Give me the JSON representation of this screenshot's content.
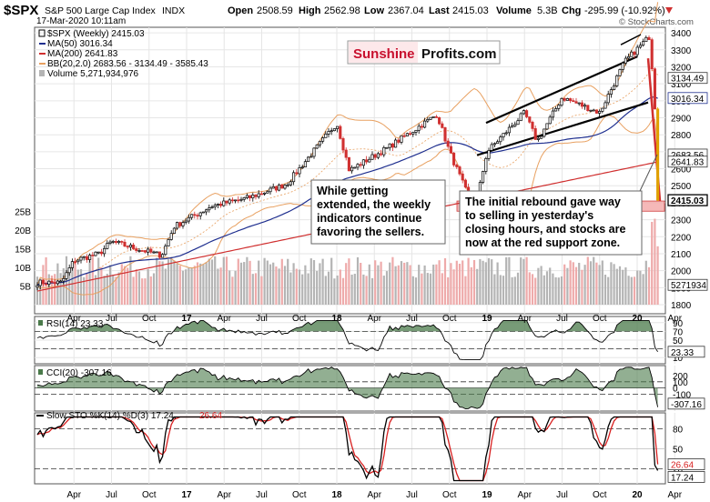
{
  "header": {
    "symbol": "$SPX",
    "name": "S&P 500 Large Cap Index",
    "exchange": "INDX",
    "date": "17-Mar-2020 10:11am",
    "open_label": "Open",
    "open": "2508.59",
    "high_label": "High",
    "high": "2562.98",
    "low_label": "Low",
    "low": "2367.04",
    "last_label": "Last",
    "last": "2415.03",
    "volume_label": "Volume",
    "volume": "5.3B",
    "chg_label": "Chg",
    "chg": "-295.99 (-10.92%)",
    "copyright": "© StockCharts.com"
  },
  "legend": {
    "price": "$SPX (Weekly) 2415.03",
    "ma50": "MA(50) 3016.34",
    "ma200": "MA(200) 2641.83",
    "bb": "BB(20,2.0) 2683.56 - 3134.49 - 3585.43",
    "volume": "Volume 5,271,934,976"
  },
  "logo": {
    "part1": "Sunshine",
    "part2": "Profits.com"
  },
  "annotations": {
    "left": [
      "While getting",
      "extended, the weekly",
      "indicators continue",
      "favoring the sellers."
    ],
    "right": [
      "The initial rebound gave way",
      "to selling in yesterday's",
      "closing hours, and stocks are",
      "now at the red support zone."
    ]
  },
  "colors": {
    "price": "#000000",
    "ma50": "#1f2f8f",
    "ma200": "#d03030",
    "bb": "#e8a060",
    "volume_up": "#b4b4b4",
    "volume_down": "#eeaaaa",
    "support_zone": "#f2a0a0",
    "indicator_fill": "#4a7a4a",
    "indicator_neg_fill": "#8a6060",
    "slowd": "#d82020",
    "logo_red": "#c8102e"
  },
  "x_labels": [
    "Apr",
    "Jul",
    "Oct",
    "17",
    "Apr",
    "Jul",
    "Oct",
    "18",
    "Apr",
    "Jul",
    "Oct",
    "19",
    "Apr",
    "Jul",
    "Oct",
    "20",
    "Apr"
  ],
  "price_ticks": [
    "3400",
    "3300",
    "3200",
    "3100",
    "3000",
    "2900",
    "2800",
    "2700",
    "2600",
    "2500",
    "2400",
    "2300",
    "2200",
    "2100",
    "2000",
    "1900",
    "1800"
  ],
  "price_badges": {
    "bb_upper": "3134.49",
    "ma50": "3016.34",
    "bb_lower": "2683.56",
    "ma200": "2641.83",
    "last": "2415.03"
  },
  "volume_ticks": [
    "25B",
    "20B",
    "15B",
    "10B",
    "5B"
  ],
  "volume_badge": "5271934",
  "rsi": {
    "label": "RSI(14) 23.33",
    "ticks": [
      "90",
      "70",
      "50",
      "30",
      "10"
    ],
    "badge": "23.33"
  },
  "cci": {
    "label": "CCI(20) -307.16",
    "ticks": [
      "200",
      "100",
      "0",
      "-100",
      "-200"
    ],
    "badge": "-307.16"
  },
  "sto": {
    "label": "Slow STO %K(14) %D(3) 17.24,",
    "d_value": "26.64",
    "ticks": [
      "80",
      "50",
      "20"
    ],
    "badge_d": "26.64",
    "badge_k": "17.24"
  },
  "chart_data": {
    "type": "line",
    "title": "$SPX S&P 500 Large Cap Index (Weekly)",
    "y_axis_range": [
      1800,
      3400
    ],
    "price_close_waypoints": [
      {
        "x": "2016-03",
        "close": 1930
      },
      {
        "x": "2016-04",
        "close": 2060
      },
      {
        "x": "2016-06",
        "close": 2100
      },
      {
        "x": "2016-07",
        "close": 2170
      },
      {
        "x": "2016-11",
        "close": 2090
      },
      {
        "x": "2016-12",
        "close": 2260
      },
      {
        "x": "2017-03",
        "close": 2380
      },
      {
        "x": "2017-06",
        "close": 2430
      },
      {
        "x": "2017-09",
        "close": 2510
      },
      {
        "x": "2018-01",
        "close": 2870
      },
      {
        "x": "2018-02",
        "close": 2590
      },
      {
        "x": "2018-05",
        "close": 2720
      },
      {
        "x": "2018-09",
        "close": 2920
      },
      {
        "x": "2018-10",
        "close": 2700
      },
      {
        "x": "2018-12",
        "close": 2350
      },
      {
        "x": "2019-01",
        "close": 2700
      },
      {
        "x": "2019-04",
        "close": 2930
      },
      {
        "x": "2019-05",
        "close": 2760
      },
      {
        "x": "2019-07",
        "close": 3020
      },
      {
        "x": "2019-10",
        "close": 2930
      },
      {
        "x": "2019-12",
        "close": 3230
      },
      {
        "x": "2020-02",
        "close": 3380
      },
      {
        "x": "2020-02-28",
        "close": 2950
      },
      {
        "x": "2020-03-06",
        "close": 2970
      },
      {
        "x": "2020-03-13",
        "close": 2710
      },
      {
        "x": "2020-03-17",
        "close": 2415
      }
    ],
    "ma50_last": 3016.34,
    "ma200_last": 2641.83,
    "bb_last": {
      "lower": 2683.56,
      "mid": 3134.49,
      "upper": 3585.43
    },
    "support_zone": [
      2350,
      2410
    ],
    "rsi_last": 23.33,
    "cci_last": -307.16,
    "stoch_k_last": 17.24,
    "stoch_d_last": 26.64,
    "volume_last": 5271934976
  }
}
